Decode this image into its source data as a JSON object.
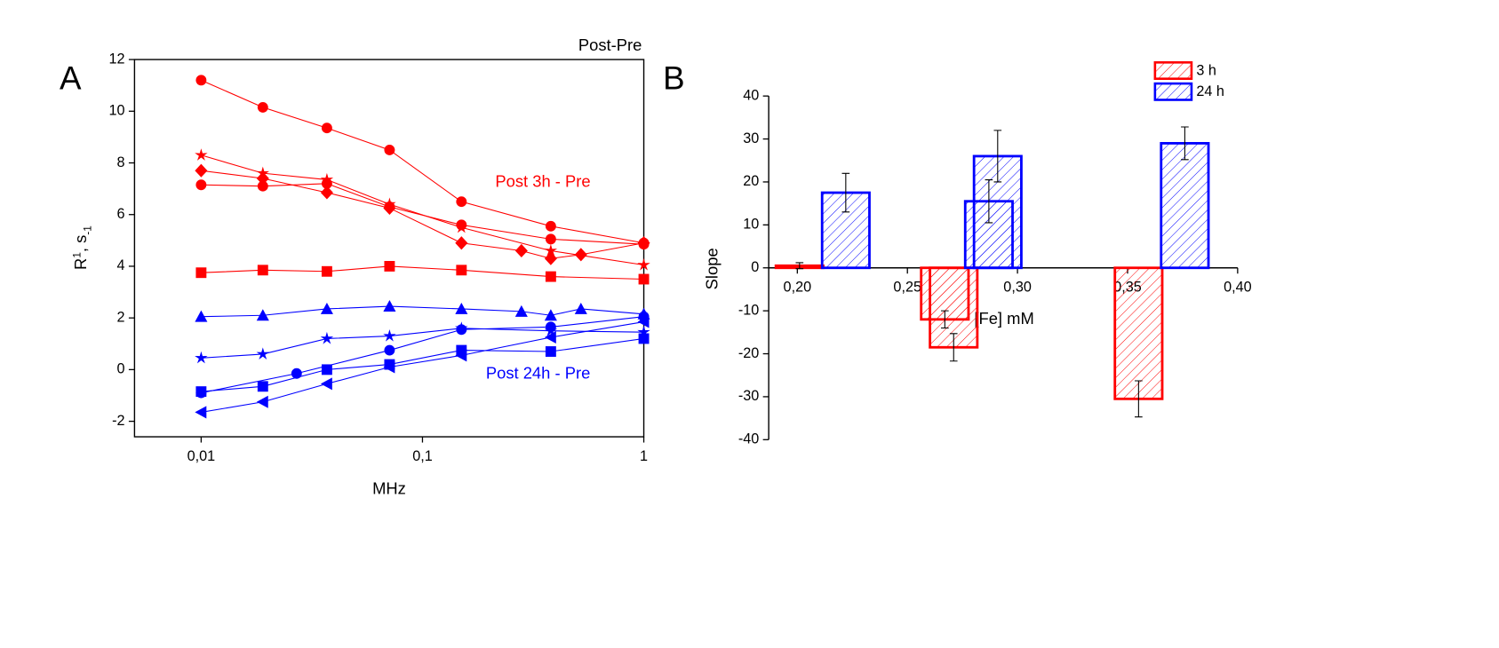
{
  "chart_data": [
    {
      "type": "line",
      "panel_label": "A",
      "title": "Post-Pre",
      "annotations": [
        {
          "text": "Post 3h - Pre",
          "color": "#ff0000"
        },
        {
          "text": "Post 24h - Pre",
          "color": "#0000ff"
        }
      ],
      "xlabel": "MHz",
      "ylabel": [
        "R",
        "1",
        ", s",
        "-1"
      ],
      "xscale": "log",
      "xlim": [
        0.005,
        1
      ],
      "ylim": [
        -2.6,
        12
      ],
      "xticks": [
        {
          "value": 0.01,
          "label": "0,01"
        },
        {
          "value": 0.1,
          "label": "0,1"
        },
        1
      ],
      "yticks": [
        -2,
        0,
        2,
        4,
        6,
        8,
        10,
        12
      ],
      "series": [
        {
          "color": "#ff0000",
          "marker": "circle",
          "x": [
            0.01,
            0.019,
            0.037,
            0.071,
            0.15,
            0.38,
            1
          ],
          "values": [
            11.2,
            10.15,
            9.35,
            8.5,
            6.5,
            5.55,
            4.9
          ]
        },
        {
          "color": "#ff0000",
          "marker": "star",
          "x": [
            0.01,
            0.019,
            0.037,
            0.071,
            0.15,
            0.38,
            1
          ],
          "values": [
            8.3,
            7.6,
            7.35,
            6.4,
            5.5,
            4.6,
            4.05
          ]
        },
        {
          "color": "#ff0000",
          "marker": "diamond",
          "x": [
            0.01,
            0.019,
            0.037,
            0.071,
            0.15,
            0.28,
            0.38,
            0.52,
            1
          ],
          "values": [
            7.7,
            7.4,
            6.85,
            6.25,
            4.9,
            4.6,
            4.3,
            4.45,
            4.9
          ]
        },
        {
          "color": "#ff0000",
          "marker": "hexagon",
          "x": [
            0.01,
            0.019,
            0.037,
            0.071,
            0.15,
            0.38,
            1
          ],
          "values": [
            7.15,
            7.1,
            7.2,
            6.3,
            5.6,
            5.05,
            4.85
          ]
        },
        {
          "color": "#ff0000",
          "marker": "square",
          "x": [
            0.01,
            0.019,
            0.037,
            0.071,
            0.15,
            0.38,
            1
          ],
          "values": [
            3.75,
            3.85,
            3.8,
            4.0,
            3.85,
            3.6,
            3.5
          ]
        },
        {
          "color": "#0000ff",
          "marker": "triangle-up",
          "x": [
            0.01,
            0.019,
            0.037,
            0.071,
            0.15,
            0.28,
            0.38,
            0.52,
            1
          ],
          "values": [
            2.05,
            2.1,
            2.35,
            2.45,
            2.35,
            2.25,
            2.1,
            2.35,
            2.15
          ]
        },
        {
          "color": "#0000ff",
          "marker": "star",
          "x": [
            0.01,
            0.019,
            0.037,
            0.071,
            0.15,
            0.38,
            1
          ],
          "values": [
            0.45,
            0.6,
            1.2,
            1.3,
            1.6,
            1.5,
            1.45
          ]
        },
        {
          "color": "#0000ff",
          "marker": "circle",
          "x": [
            0.01,
            0.027,
            0.071,
            0.15,
            0.38,
            1
          ],
          "values": [
            -0.9,
            -0.15,
            0.75,
            1.55,
            1.65,
            2.05
          ]
        },
        {
          "color": "#0000ff",
          "marker": "square",
          "x": [
            0.01,
            0.019,
            0.037,
            0.071,
            0.15,
            0.38,
            1
          ],
          "values": [
            -0.85,
            -0.65,
            0,
            0.2,
            0.75,
            0.7,
            1.2
          ]
        },
        {
          "color": "#0000ff",
          "marker": "triangle-left",
          "x": [
            0.01,
            0.019,
            0.037,
            0.071,
            0.15,
            0.38,
            1
          ],
          "values": [
            -1.65,
            -1.25,
            -0.55,
            0.1,
            0.55,
            1.25,
            1.85
          ]
        }
      ]
    },
    {
      "type": "bar",
      "panel_label": "B",
      "xlabel": "[Fe] mM",
      "ylabel": "Slope",
      "xlim": [
        0.187,
        0.4
      ],
      "ylim": [
        -40,
        40
      ],
      "xticks": [
        {
          "value": 0.2,
          "label": "0,20"
        },
        {
          "value": 0.25,
          "label": "0,25"
        },
        {
          "value": 0.3,
          "label": "0,30"
        },
        {
          "value": 0.35,
          "label": "0,35"
        },
        {
          "value": 0.4,
          "label": "0,40"
        }
      ],
      "yticks": [
        -40,
        -30,
        -20,
        -10,
        0,
        10,
        20,
        30,
        40
      ],
      "pattern": "hatch",
      "legend": "top-right",
      "series": [
        {
          "name": "3 h",
          "color": "#ff0000",
          "x": [
            0.201,
            0.267,
            0.271,
            0.355
          ],
          "values": [
            0.5,
            -12,
            -18.5,
            -30.5
          ],
          "errors": [
            0.7,
            2,
            3.2,
            4.2
          ]
        },
        {
          "name": "24 h",
          "color": "#0000ff",
          "x": [
            0.222,
            0.287,
            0.291,
            0.376
          ],
          "values": [
            17.5,
            15.5,
            26,
            29
          ],
          "errors": [
            4.5,
            5,
            6,
            3.8
          ]
        }
      ]
    }
  ]
}
